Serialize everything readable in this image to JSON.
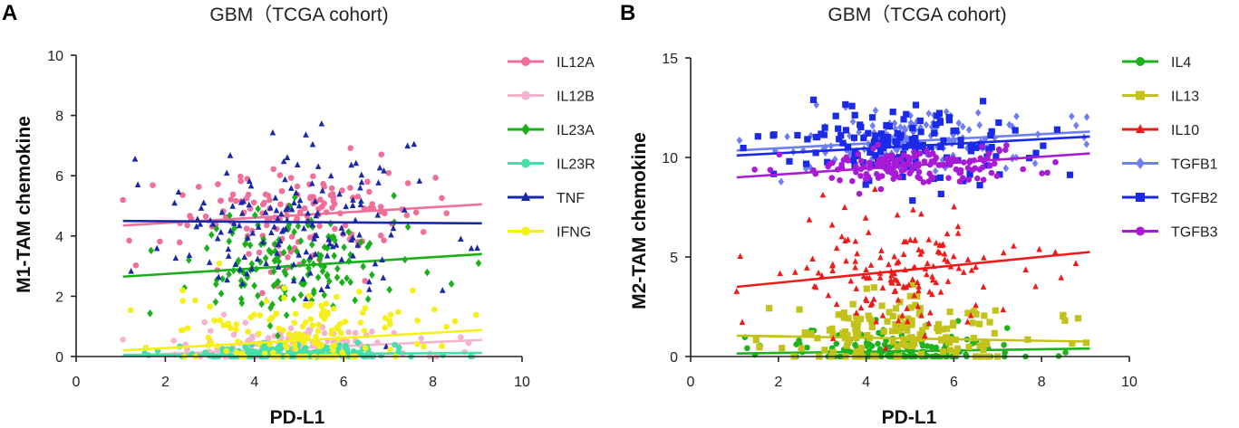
{
  "chart_data": [
    {
      "panel": "A",
      "type": "scatter",
      "title": "GBM（TCGA cohort)",
      "xlabel": "PD-L1",
      "ylabel": "M1-TAM chemokine",
      "xlim": [
        0,
        10
      ],
      "ylim": [
        0,
        10
      ],
      "xticks": [
        0,
        2,
        4,
        6,
        8,
        10
      ],
      "yticks": [
        0,
        2,
        4,
        6,
        8,
        10
      ],
      "legend_position": "right",
      "series": [
        {
          "name": "IL12A",
          "color": "#ef6f98",
          "marker": "circle",
          "fit": [
            4.35,
            5.05
          ],
          "center": 4.6,
          "spread": 0.9
        },
        {
          "name": "IL12B",
          "color": "#f6b3cf",
          "marker": "circle",
          "fit": [
            0.02,
            0.55
          ],
          "center": 0.3,
          "spread": 0.35
        },
        {
          "name": "IL23A",
          "color": "#1ab01a",
          "marker": "diamond",
          "fit": [
            2.65,
            3.4
          ],
          "center": 3.0,
          "spread": 0.9
        },
        {
          "name": "IL23R",
          "color": "#43e0a8",
          "marker": "circle",
          "fit": [
            0.05,
            0.12
          ],
          "center": 0.1,
          "spread": 0.15
        },
        {
          "name": "TNF",
          "color": "#1a2aa6",
          "marker": "triangle",
          "fit": [
            4.5,
            4.42
          ],
          "center": 4.4,
          "spread": 1.3
        },
        {
          "name": "IFNG",
          "color": "#f5ef1a",
          "marker": "circle",
          "fit": [
            0.2,
            0.88
          ],
          "center": 0.8,
          "spread": 0.7
        }
      ]
    },
    {
      "panel": "B",
      "type": "scatter",
      "title": "GBM（TCGA cohort)",
      "xlabel": "PD-L1",
      "ylabel": "M2-TAM chemokine",
      "xlim": [
        0,
        10
      ],
      "ylim": [
        0,
        15
      ],
      "xticks": [
        0,
        2,
        4,
        6,
        8,
        10
      ],
      "yticks": [
        0,
        5,
        10,
        15
      ],
      "legend_position": "right",
      "series": [
        {
          "name": "IL4",
          "color": "#1fb21f",
          "marker": "circle",
          "fit": [
            0.15,
            0.4
          ],
          "center": 0.3,
          "spread": 0.6
        },
        {
          "name": "IL13",
          "color": "#c2c21a",
          "marker": "square",
          "fit": [
            1.05,
            0.75
          ],
          "center": 1.0,
          "spread": 0.9
        },
        {
          "name": "IL10",
          "color": "#ef1a1a",
          "marker": "triangle",
          "fit": [
            3.5,
            5.25
          ],
          "center": 4.3,
          "spread": 1.4
        },
        {
          "name": "TGFB1",
          "color": "#6f7ff2",
          "marker": "diamond",
          "fit": [
            10.35,
            11.3
          ],
          "center": 10.8,
          "spread": 0.7
        },
        {
          "name": "TGFB2",
          "color": "#1a2ae6",
          "marker": "square",
          "fit": [
            10.1,
            11.05
          ],
          "center": 10.6,
          "spread": 1.0
        },
        {
          "name": "TGFB3",
          "color": "#a81ad6",
          "marker": "circle",
          "fit": [
            9.0,
            10.2
          ],
          "center": 9.5,
          "spread": 0.5
        }
      ]
    }
  ]
}
